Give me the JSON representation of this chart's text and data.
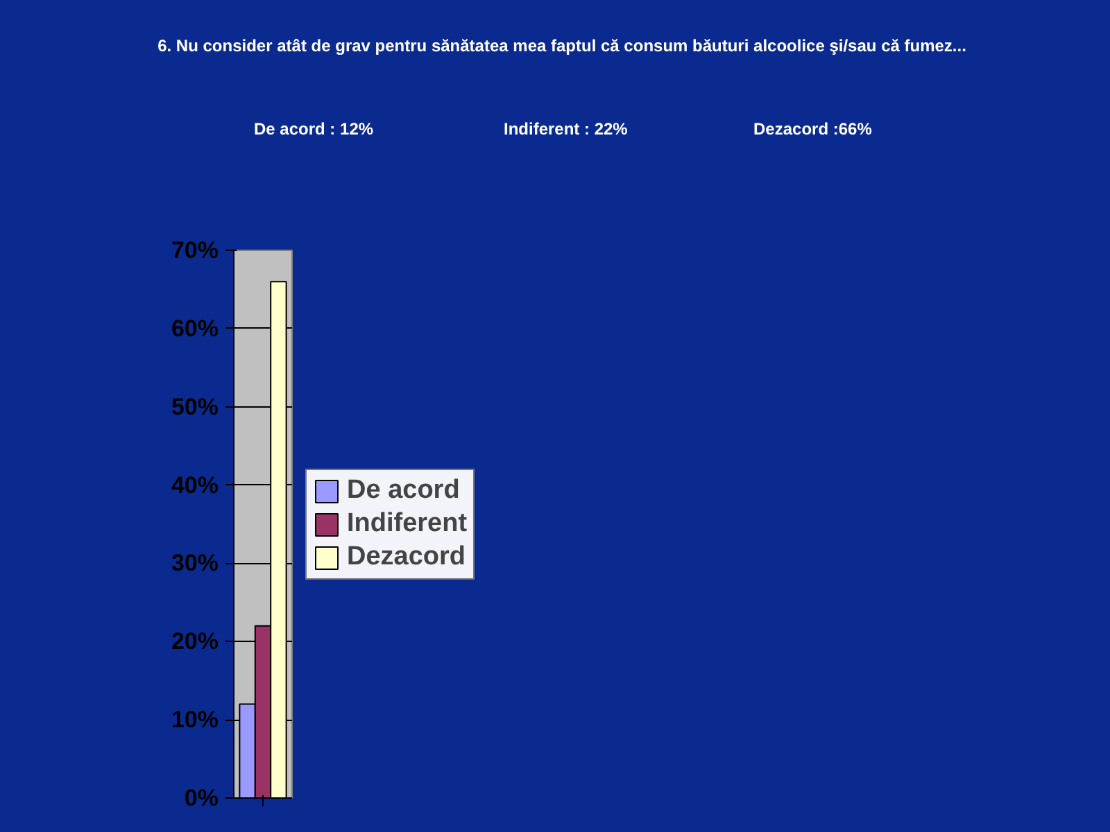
{
  "chart_data": {
    "type": "bar",
    "title": "6. Nu consider atât de grav pentru sănătatea mea faptul că consum băuturi alcoolice şi/sau că fumez...",
    "annotations": [
      "De acord : 12%",
      "Indiferent : 22%",
      "Dezacord :66%"
    ],
    "categories": [
      null
    ],
    "series": [
      {
        "name": "De acord",
        "color": "#9999ff",
        "values": [
          12
        ]
      },
      {
        "name": "Indiferent",
        "color": "#993366",
        "values": [
          22
        ]
      },
      {
        "name": "Dezacord",
        "color": "#ffffcc",
        "values": [
          66
        ]
      }
    ],
    "ylim": [
      0,
      70
    ],
    "yticks": [
      {
        "value": 0,
        "label": "0%"
      },
      {
        "value": 10,
        "label": "10%"
      },
      {
        "value": 20,
        "label": "20%"
      },
      {
        "value": 30,
        "label": "30%"
      },
      {
        "value": 40,
        "label": "40%"
      },
      {
        "value": 50,
        "label": "50%"
      },
      {
        "value": 60,
        "label": "60%"
      },
      {
        "value": 70,
        "label": "70%"
      }
    ],
    "grid": "y",
    "legend": "right"
  }
}
